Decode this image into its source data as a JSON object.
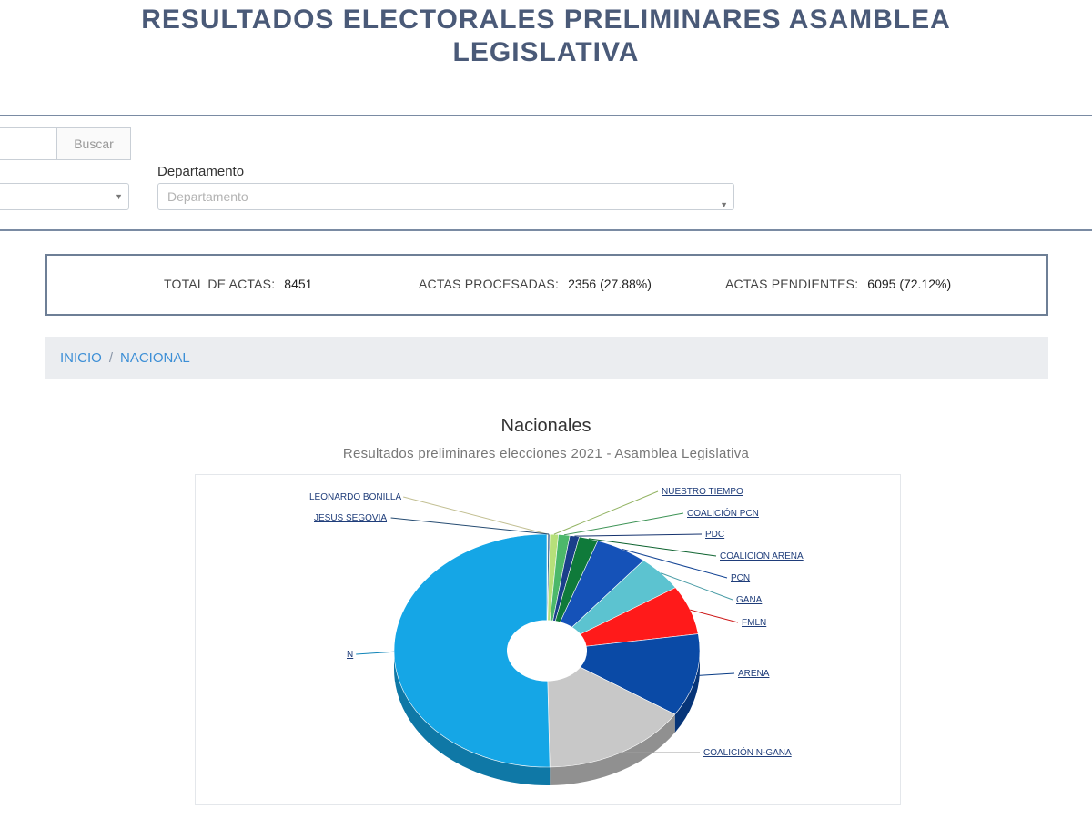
{
  "header": {
    "title_line1": "RESULTADOS ELECTORALES PRELIMINARES ASAMBLEA",
    "title_line2": "LEGISLATIVA"
  },
  "filters": {
    "search_button_label": "Buscar",
    "department_label": "Departamento",
    "department_placeholder": "Departamento"
  },
  "stats": {
    "total_label": "TOTAL DE ACTAS:",
    "total_value": "8451",
    "processed_label": "ACTAS PROCESADAS:",
    "processed_value": "2356 (27.88%)",
    "pending_label": "ACTAS PENDIENTES:",
    "pending_value": "6095 (72.12%)"
  },
  "breadcrumb": {
    "home": "INICIO",
    "separator": "/",
    "current": "NACIONAL"
  },
  "chart_data": {
    "type": "pie",
    "style": "3d-donut",
    "title": "Nacionales",
    "subtitle": "Resultados preliminares elecciones 2021 - Asamblea Legislativa",
    "slices": [
      {
        "label": "LEONARDO BONILLA",
        "value": 0.1,
        "color": "#f2efb6"
      },
      {
        "label": "JESUS SEGOVIA",
        "value": 0.2,
        "color": "#2f5f8f"
      },
      {
        "label": "NUESTRO TIEMPO",
        "value": 0.9,
        "color": "#b6e07a"
      },
      {
        "label": "COALICIÓN PCN",
        "value": 1.2,
        "color": "#4cb86a"
      },
      {
        "label": "PDC",
        "value": 1.0,
        "color": "#1a3f8a"
      },
      {
        "label": "COALICIÓN ARENA",
        "value": 2.0,
        "color": "#0f7a3a"
      },
      {
        "label": "PCN",
        "value": 5.5,
        "color": "#1552b8"
      },
      {
        "label": "GANA",
        "value": 5.0,
        "color": "#5cc3d0"
      },
      {
        "label": "FMLN",
        "value": 6.8,
        "color": "#ff1a1a"
      },
      {
        "label": "ARENA",
        "value": 11.5,
        "color": "#0a4aa6"
      },
      {
        "label": "COALICIÓN N-GANA",
        "value": 15.5,
        "color": "#c8c8c8"
      },
      {
        "label": "N",
        "value": 50.3,
        "color": "#15a6e6"
      }
    ]
  }
}
